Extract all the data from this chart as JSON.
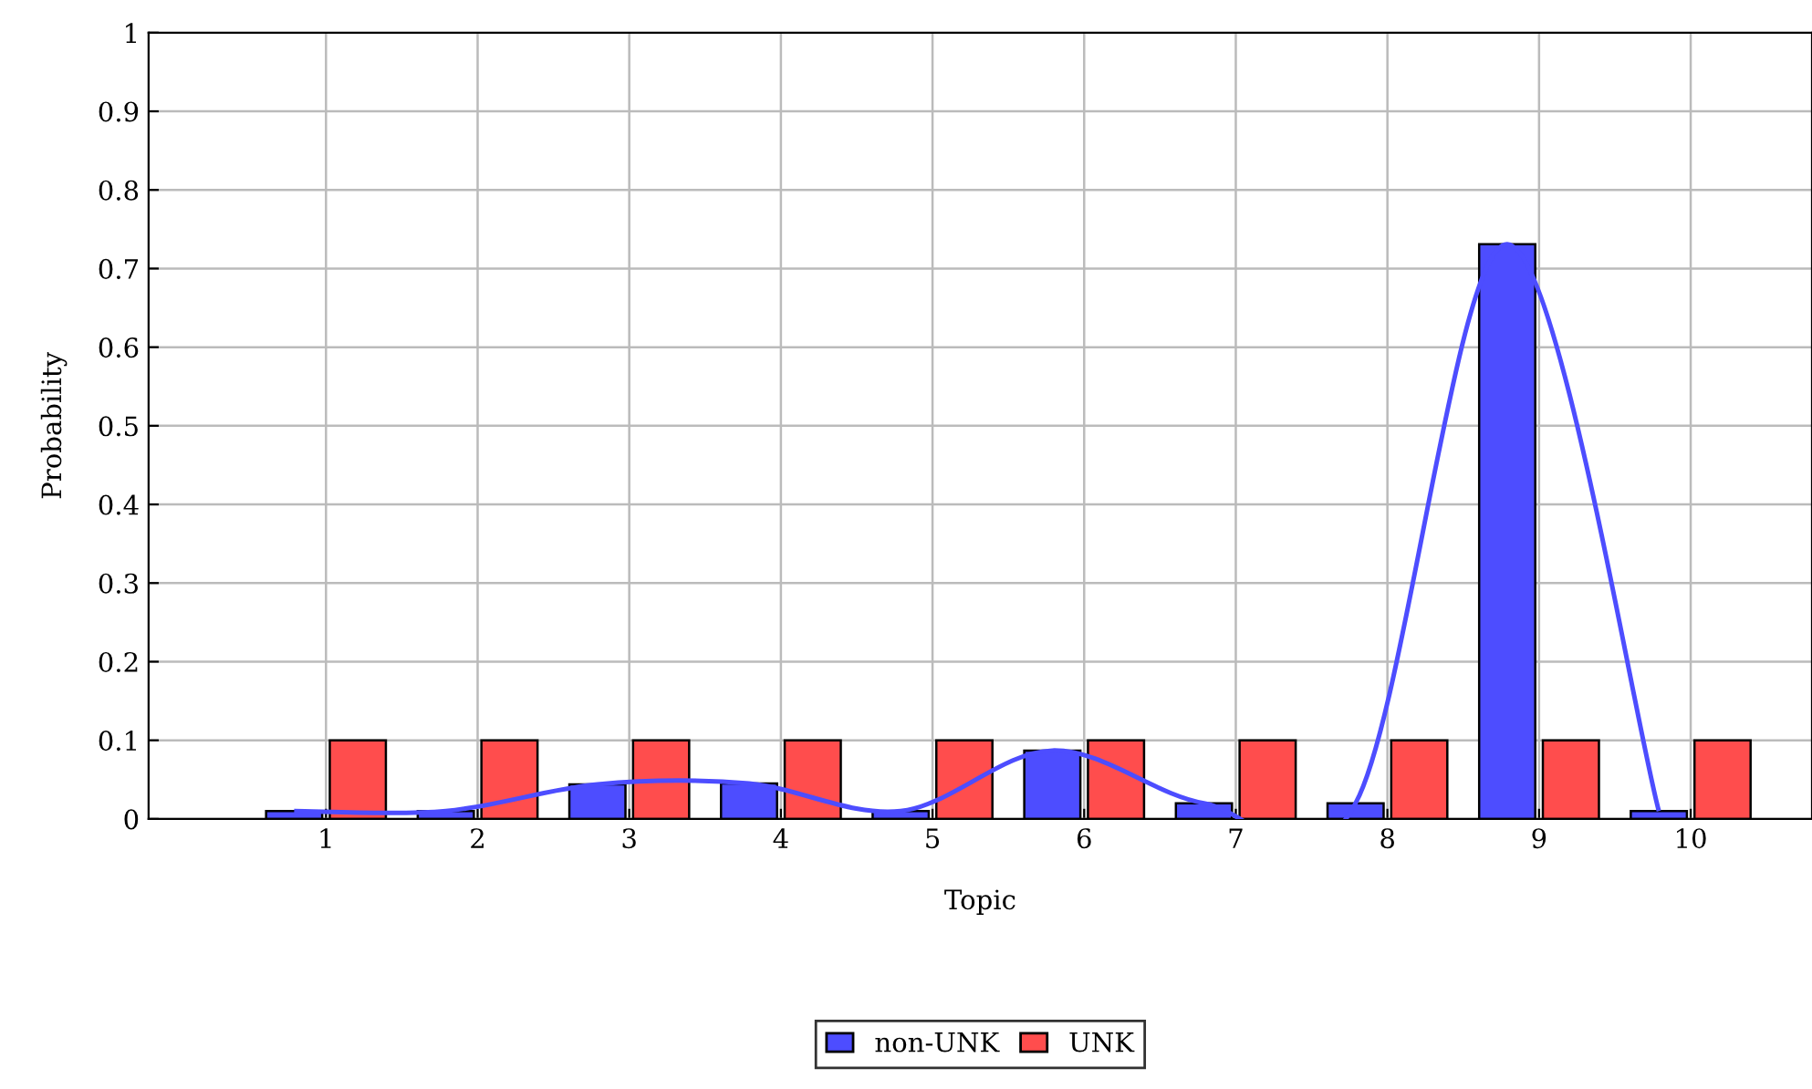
{
  "chart_data": {
    "type": "bar",
    "xlabel": "Topic",
    "ylabel": "Probability",
    "x": [
      1,
      2,
      3,
      4,
      5,
      6,
      7,
      8,
      9,
      10
    ],
    "series": [
      {
        "name": "non-UNK",
        "color": "#4d4dff",
        "values": [
          0.01,
          0.01,
          0.044,
          0.045,
          0.01,
          0.087,
          0.02,
          0.02,
          0.731,
          0.01
        ]
      },
      {
        "name": "UNK",
        "color": "#ff4d4d",
        "values": [
          0.1,
          0.1,
          0.1,
          0.1,
          0.1,
          0.1,
          0.1,
          0.1,
          0.1,
          0.1
        ]
      },
      {
        "type": "line",
        "color": "#4d4dff",
        "x": [
          0.79,
          1.79,
          2.79,
          3.79,
          4.79,
          5.79,
          6.79,
          7.79,
          8.79,
          9.79
        ],
        "values": [
          0.01,
          0.01,
          0.044,
          0.045,
          0.01,
          0.087,
          0.02,
          0.02,
          0.731,
          0.01
        ]
      }
    ],
    "xlim": [
      -0.17,
      10.8
    ],
    "xticks": [
      1,
      2,
      3,
      4,
      5,
      6,
      7,
      8,
      9,
      10
    ],
    "ylim": [
      0,
      1
    ],
    "yticks": [
      0,
      0.1,
      0.2,
      0.3,
      0.4,
      0.5,
      0.6,
      0.7,
      0.8,
      0.9,
      1
    ],
    "grid": true,
    "legend": "bottom"
  }
}
